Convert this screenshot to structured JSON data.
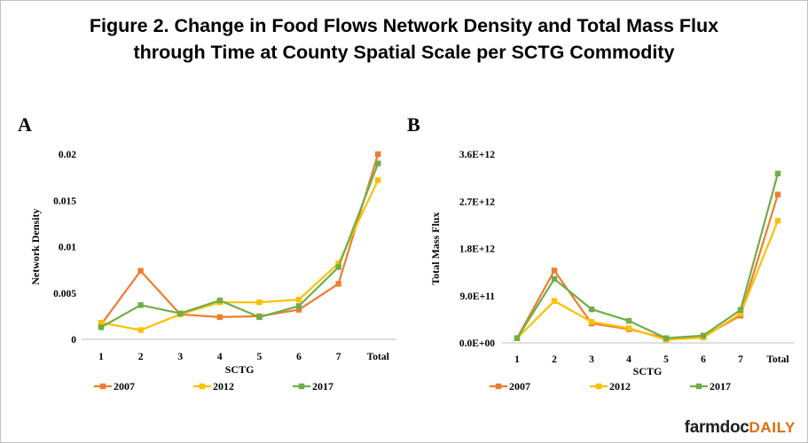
{
  "figure": {
    "title_line1": "Figure 2. Change in Food Flows Network Density and Total Mass Flux",
    "title_line2": "through Time at County Spatial Scale per SCTG Commodity"
  },
  "brand": {
    "part1": "farmdoc",
    "part2": "DAILY"
  },
  "colors": {
    "2007": "#ed7d31",
    "2012": "#ffc000",
    "2017": "#70ad47"
  },
  "chart_data": [
    {
      "type": "line",
      "panel": "A",
      "title": "",
      "xlabel": "SCTG",
      "ylabel": "Network Density",
      "categories": [
        "1",
        "2",
        "3",
        "4",
        "5",
        "6",
        "7",
        "Total"
      ],
      "ylim": [
        0,
        0.02
      ],
      "yticks": [
        "0",
        "0.005",
        "0.01",
        "0.015",
        "0.02"
      ],
      "legend_position": "bottom",
      "grid": false,
      "series": [
        {
          "name": "2007",
          "values": [
            0.0016,
            0.0074,
            0.0027,
            0.0024,
            0.0025,
            0.0032,
            0.006,
            0.02
          ]
        },
        {
          "name": "2012",
          "values": [
            0.0018,
            0.001,
            0.0027,
            0.004,
            0.004,
            0.0043,
            0.0082,
            0.0172
          ]
        },
        {
          "name": "2017",
          "values": [
            0.0013,
            0.0037,
            0.0028,
            0.0042,
            0.0024,
            0.0036,
            0.0078,
            0.019
          ]
        }
      ]
    },
    {
      "type": "line",
      "panel": "B",
      "title": "",
      "xlabel": "SCTG",
      "ylabel": "Total Mass Flux",
      "categories": [
        "1",
        "2",
        "3",
        "4",
        "5",
        "6",
        "7",
        "Total"
      ],
      "ylim": [
        0,
        3600000000000
      ],
      "yticks": [
        "0.0E+00",
        "9.0E+11",
        "1.8E+12",
        "2.7E+12",
        "3.6E+12"
      ],
      "legend_position": "bottom",
      "grid": false,
      "series": [
        {
          "name": "2007",
          "values": [
            90000000000,
            1380000000000,
            370000000000,
            260000000000,
            90000000000,
            120000000000,
            520000000000,
            2830000000000
          ]
        },
        {
          "name": "2012",
          "values": [
            90000000000,
            800000000000,
            400000000000,
            280000000000,
            60000000000,
            100000000000,
            560000000000,
            2330000000000
          ]
        },
        {
          "name": "2017",
          "values": [
            90000000000,
            1220000000000,
            640000000000,
            420000000000,
            90000000000,
            140000000000,
            630000000000,
            3230000000000
          ]
        }
      ]
    }
  ]
}
